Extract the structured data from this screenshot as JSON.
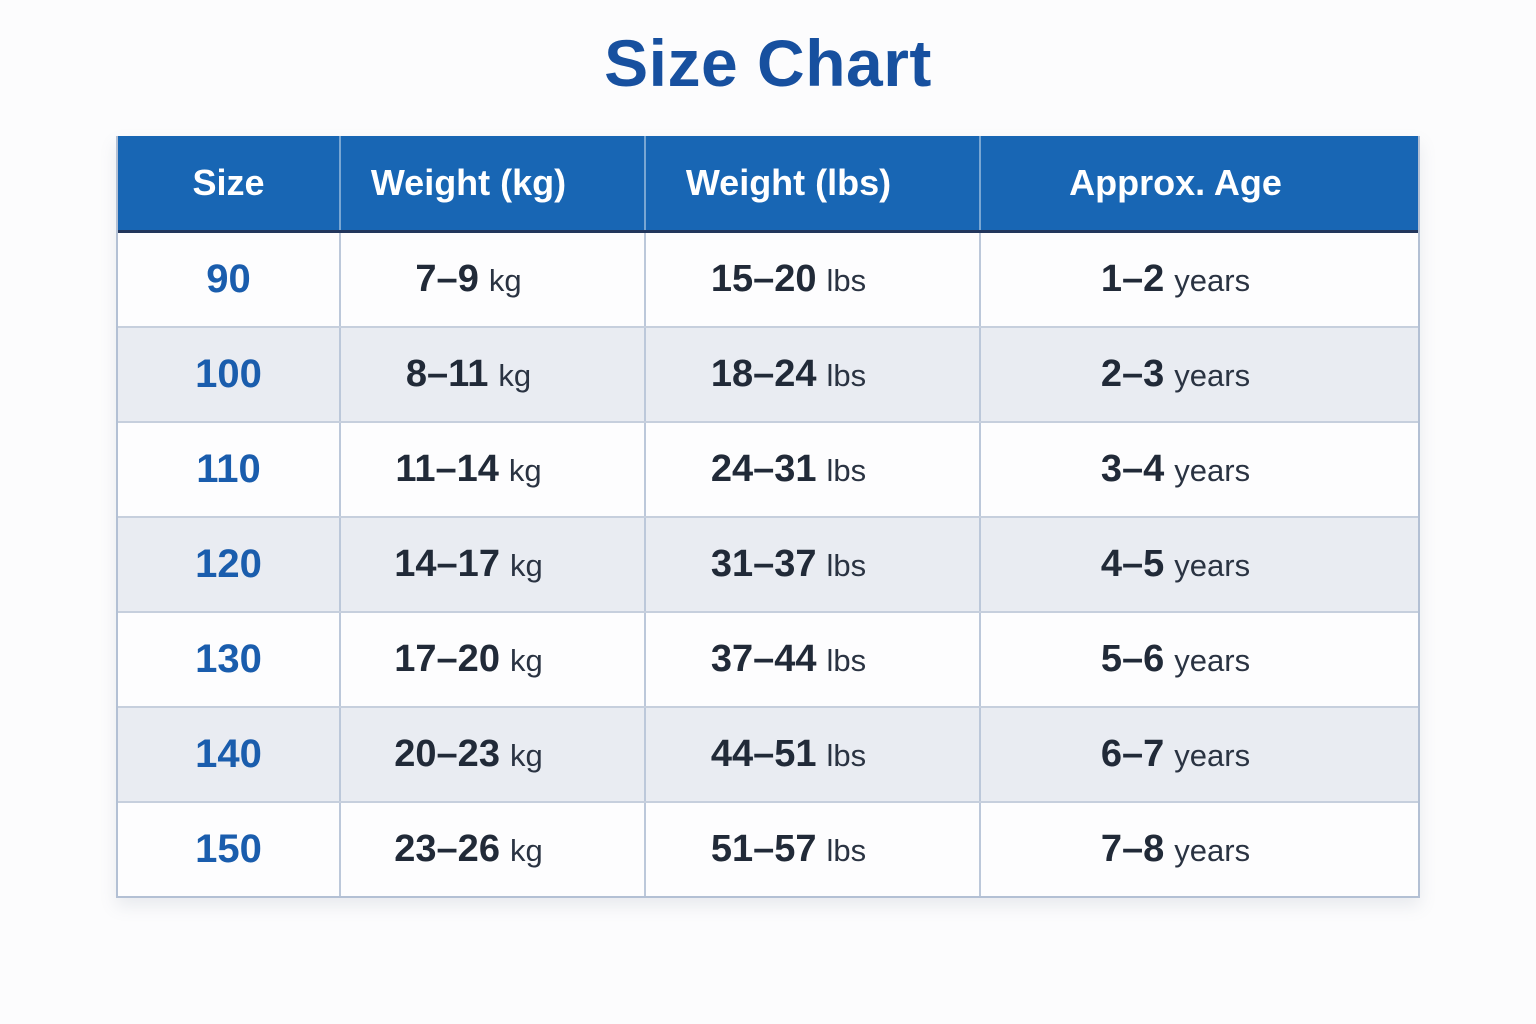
{
  "page": {
    "background": "#fcfcfd"
  },
  "chart_data": {
    "type": "table",
    "title": "Size Chart",
    "columns": [
      "Size",
      "Weight (kg)",
      "Weight (lbs)",
      "Approx. Age"
    ],
    "rows": [
      {
        "size": "90",
        "kg_value": "7–9",
        "kg_unit": "kg",
        "lbs_value": "15–20",
        "lbs_unit": "lbs",
        "age_value": "1–2",
        "age_unit": "years"
      },
      {
        "size": "100",
        "kg_value": "8–11",
        "kg_unit": "kg",
        "lbs_value": "18–24",
        "lbs_unit": "lbs",
        "age_value": "2–3",
        "age_unit": "years"
      },
      {
        "size": "110",
        "kg_value": "11–14",
        "kg_unit": "kg",
        "lbs_value": "24–31",
        "lbs_unit": "lbs",
        "age_value": "3–4",
        "age_unit": "years"
      },
      {
        "size": "120",
        "kg_value": "14–17",
        "kg_unit": "kg",
        "lbs_value": "31–37",
        "lbs_unit": "lbs",
        "age_value": "4–5",
        "age_unit": "years"
      },
      {
        "size": "130",
        "kg_value": "17–20",
        "kg_unit": "kg",
        "lbs_value": "37–44",
        "lbs_unit": "lbs",
        "age_value": "5–6",
        "age_unit": "years"
      },
      {
        "size": "140",
        "kg_value": "20–23",
        "kg_unit": "kg",
        "lbs_value": "44–51",
        "lbs_unit": "lbs",
        "age_value": "6–7",
        "age_unit": "years"
      },
      {
        "size": "150",
        "kg_value": "23–26",
        "kg_unit": "kg",
        "lbs_value": "51–57",
        "lbs_unit": "lbs",
        "age_value": "7–8",
        "age_unit": "years"
      }
    ],
    "layout_hints": {
      "legend": "none",
      "grid": "on",
      "striped_rows": true
    },
    "colors": {
      "header_background": "#1866b4",
      "header_text": "#ffffff",
      "title_text": "#17509f",
      "size_number_text": "#1a5dad",
      "body_text": "#212a38",
      "stripe_row_background": "#e9ecf2",
      "white_row_background": "#fdfdfe",
      "grid_border": "#bcc8da"
    }
  }
}
